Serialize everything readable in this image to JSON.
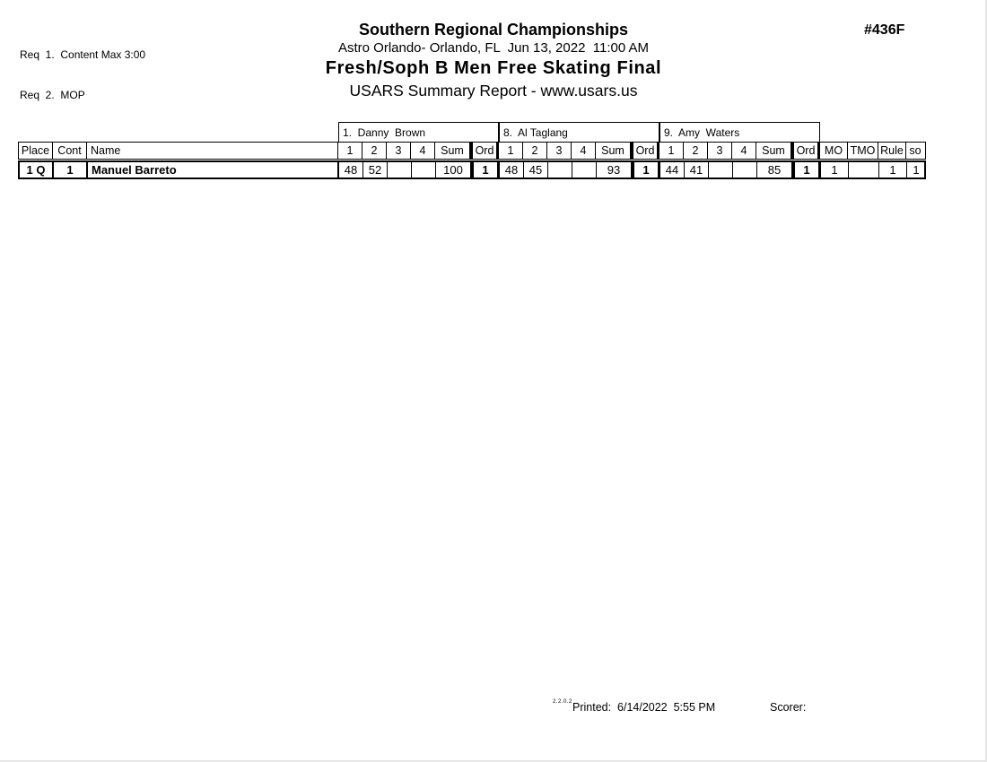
{
  "page": {
    "req_lines": [
      "Req  1.  Content Max 3:00",
      "Req  2.  MOP"
    ],
    "event_number": "#436F",
    "title": "Southern Regional Championships",
    "venue_line": "Astro Orlando- Orlando, FL  Jun 13, 2022  11:00 AM",
    "event_title": "Fresh/Soph B Men Free Skating Final",
    "report_line": "USARS Summary Report - www.usars.us"
  },
  "table": {
    "judges": [
      "1.  Danny  Brown",
      "8.  Al Taglang",
      "9.  Amy  Waters"
    ],
    "left_headers": [
      "Place",
      "Cont",
      "Name"
    ],
    "judge_headers": [
      "1",
      "2",
      "3",
      "4",
      "Sum",
      "Ord"
    ],
    "right_headers": [
      "MO",
      "TMO",
      "Rule",
      "so"
    ],
    "rows": [
      {
        "place": "1 Q",
        "cont": "1",
        "name": "Manuel Barreto",
        "judge_scores": [
          {
            "s1": "48",
            "s2": "52",
            "s3": "",
            "s4": "",
            "sum": "100",
            "ord": "1"
          },
          {
            "s1": "48",
            "s2": "45",
            "s3": "",
            "s4": "",
            "sum": "93",
            "ord": "1"
          },
          {
            "s1": "44",
            "s2": "41",
            "s3": "",
            "s4": "",
            "sum": "85",
            "ord": "1"
          }
        ],
        "mo": "1",
        "tmo": "",
        "rule": "1",
        "so": "1"
      }
    ]
  },
  "footer": {
    "version": "2.2.0.2",
    "printed": "Printed:  6/14/2022  5:55 PM",
    "scorer_label": "Scorer:"
  },
  "colors": {
    "text": "#000000",
    "border": "#000000",
    "background": "#ffffff"
  }
}
